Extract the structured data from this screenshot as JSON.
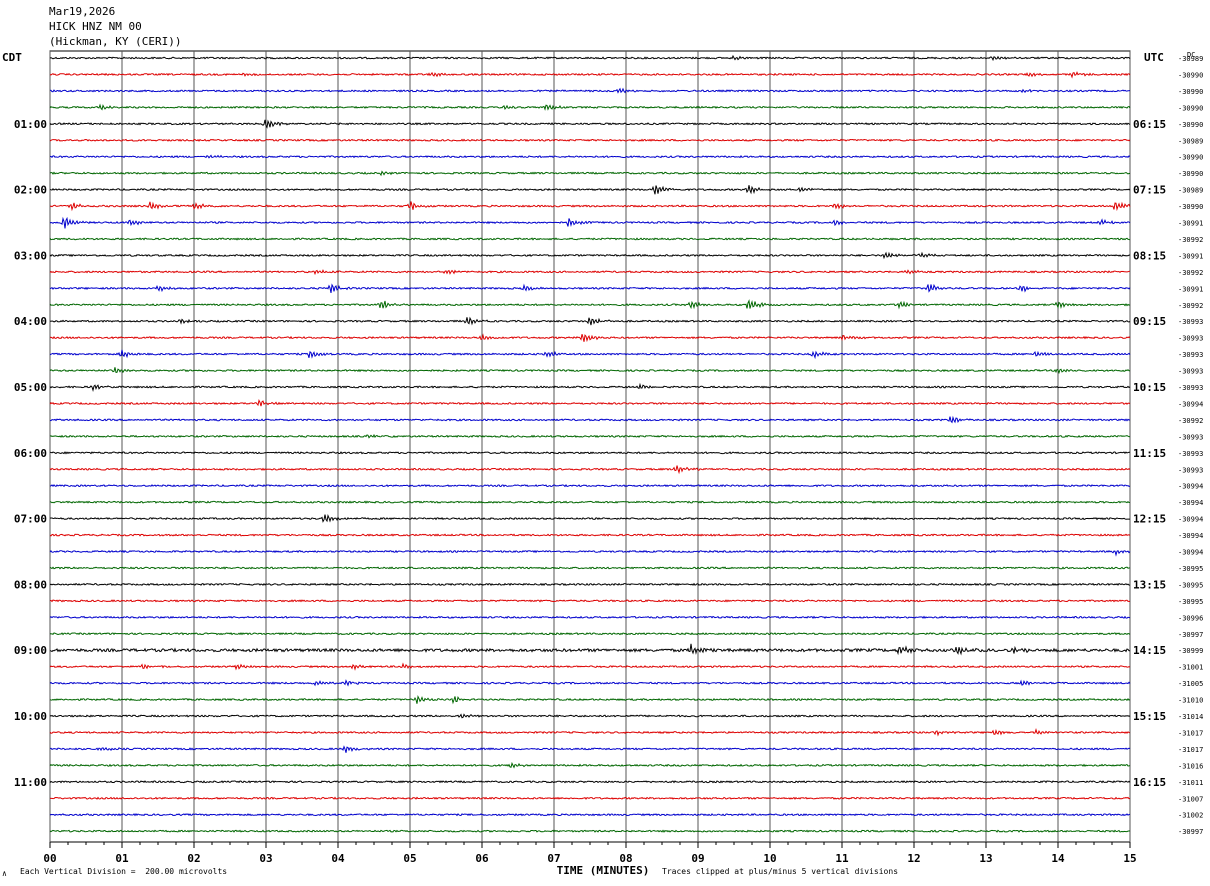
{
  "header": {
    "date": "Mar19,2026",
    "station": "HICK HNZ NM 00",
    "location": "(Hickman, KY (CERI))"
  },
  "chart_data": {
    "type": "line",
    "title": "Mar19,2026 HICK HNZ NM 00 (Hickman, KY (CERI))",
    "xlabel": "TIME (MINUTES)",
    "xlim": [
      0,
      15
    ],
    "x_ticks": [
      "00",
      "01",
      "02",
      "03",
      "04",
      "05",
      "06",
      "07",
      "08",
      "09",
      "10",
      "11",
      "12",
      "13",
      "14",
      "15"
    ],
    "left_axis_label": "CDT",
    "right_axis_label": "UTC",
    "dc_label": "DC",
    "left_time_labels": [
      "01:00",
      "02:00",
      "03:00",
      "04:00",
      "05:00",
      "06:00",
      "07:00",
      "08:00",
      "09:00",
      "10:00",
      "11:00"
    ],
    "right_time_labels": [
      "06:15",
      "07:15",
      "08:15",
      "09:15",
      "10:15",
      "11:15",
      "12:15",
      "13:15",
      "14:15",
      "15:15",
      "16:15"
    ],
    "trace_colors": [
      "#000000",
      "#dd0000",
      "#0000cc",
      "#006600"
    ],
    "dc_offsets": [
      "-30989",
      "-30990",
      "-30990",
      "-30990",
      "-30990",
      "-30989",
      "-30990",
      "-30990",
      "-30989",
      "-30990",
      "-30991",
      "-30992",
      "-30991",
      "-30992",
      "-30991",
      "-30992",
      "-30993",
      "-30993",
      "-30993",
      "-30993",
      "-30993",
      "-30994",
      "-30992",
      "-30993",
      "-30993",
      "-30993",
      "-30994",
      "-30994",
      "-30994",
      "-30994",
      "-30994",
      "-30995",
      "-30995",
      "-30995",
      "-30996",
      "-30997",
      "-30999",
      "-31001",
      "-31005",
      "-31010",
      "-31014",
      "-31017",
      "-31017",
      "-31016",
      "-31011",
      "-31007",
      "-31002",
      "-30997"
    ],
    "events": [
      {
        "trace": 0,
        "minute": 13.1,
        "amp": 3
      },
      {
        "trace": 0,
        "minute": 9.5,
        "amp": 2
      },
      {
        "trace": 1,
        "minute": 2.7,
        "amp": 3
      },
      {
        "trace": 1,
        "minute": 5.3,
        "amp": 3
      },
      {
        "trace": 1,
        "minute": 13.6,
        "amp": 3
      },
      {
        "trace": 1,
        "minute": 14.2,
        "amp": 3
      },
      {
        "trace": 2,
        "minute": 7.9,
        "amp": 3
      },
      {
        "trace": 2,
        "minute": 13.5,
        "amp": 2
      },
      {
        "trace": 3,
        "minute": 0.7,
        "amp": 3
      },
      {
        "trace": 3,
        "minute": 6.9,
        "amp": 4
      },
      {
        "trace": 3,
        "minute": 6.3,
        "amp": 3
      },
      {
        "trace": 4,
        "minute": 3.0,
        "amp": 6
      },
      {
        "trace": 6,
        "minute": 2.2,
        "amp": 2
      },
      {
        "trace": 7,
        "minute": 4.6,
        "amp": 2
      },
      {
        "trace": 8,
        "minute": 8.4,
        "amp": 6
      },
      {
        "trace": 8,
        "minute": 9.7,
        "amp": 5
      },
      {
        "trace": 8,
        "minute": 10.4,
        "amp": 3
      },
      {
        "trace": 9,
        "minute": 0.3,
        "amp": 4
      },
      {
        "trace": 9,
        "minute": 1.4,
        "amp": 5
      },
      {
        "trace": 9,
        "minute": 2.0,
        "amp": 4
      },
      {
        "trace": 9,
        "minute": 5.0,
        "amp": 5
      },
      {
        "trace": 9,
        "minute": 10.9,
        "amp": 4
      },
      {
        "trace": 9,
        "minute": 14.8,
        "amp": 6
      },
      {
        "trace": 10,
        "minute": 0.2,
        "amp": 7
      },
      {
        "trace": 10,
        "minute": 1.1,
        "amp": 4
      },
      {
        "trace": 10,
        "minute": 7.2,
        "amp": 5
      },
      {
        "trace": 10,
        "minute": 10.9,
        "amp": 4
      },
      {
        "trace": 10,
        "minute": 14.6,
        "amp": 4
      },
      {
        "trace": 12,
        "minute": 11.6,
        "amp": 4
      },
      {
        "trace": 12,
        "minute": 12.1,
        "amp": 3
      },
      {
        "trace": 13,
        "minute": 3.7,
        "amp": 2
      },
      {
        "trace": 13,
        "minute": 5.5,
        "amp": 3
      },
      {
        "trace": 13,
        "minute": 11.9,
        "amp": 3
      },
      {
        "trace": 14,
        "minute": 1.5,
        "amp": 4
      },
      {
        "trace": 14,
        "minute": 3.9,
        "amp": 5
      },
      {
        "trace": 14,
        "minute": 6.6,
        "amp": 4
      },
      {
        "trace": 14,
        "minute": 12.2,
        "amp": 6
      },
      {
        "trace": 14,
        "minute": 13.5,
        "amp": 4
      },
      {
        "trace": 15,
        "minute": 4.6,
        "amp": 6
      },
      {
        "trace": 15,
        "minute": 8.9,
        "amp": 5
      },
      {
        "trace": 15,
        "minute": 9.7,
        "amp": 7
      },
      {
        "trace": 15,
        "minute": 11.8,
        "amp": 4
      },
      {
        "trace": 15,
        "minute": 14.0,
        "amp": 4
      },
      {
        "trace": 16,
        "minute": 1.8,
        "amp": 3
      },
      {
        "trace": 16,
        "minute": 5.8,
        "amp": 5
      },
      {
        "trace": 16,
        "minute": 7.5,
        "amp": 5
      },
      {
        "trace": 17,
        "minute": 6.0,
        "amp": 4
      },
      {
        "trace": 17,
        "minute": 7.4,
        "amp": 6
      },
      {
        "trace": 17,
        "minute": 11.0,
        "amp": 4
      },
      {
        "trace": 18,
        "minute": 1.0,
        "amp": 5
      },
      {
        "trace": 18,
        "minute": 3.6,
        "amp": 5
      },
      {
        "trace": 18,
        "minute": 6.9,
        "amp": 4
      },
      {
        "trace": 18,
        "minute": 10.6,
        "amp": 4
      },
      {
        "trace": 18,
        "minute": 13.7,
        "amp": 4
      },
      {
        "trace": 19,
        "minute": 0.9,
        "amp": 4
      },
      {
        "trace": 19,
        "minute": 14.0,
        "amp": 3
      },
      {
        "trace": 20,
        "minute": 0.6,
        "amp": 3
      },
      {
        "trace": 20,
        "minute": 8.2,
        "amp": 3
      },
      {
        "trace": 21,
        "minute": 2.9,
        "amp": 4
      },
      {
        "trace": 22,
        "minute": 12.5,
        "amp": 5
      },
      {
        "trace": 23,
        "minute": 4.4,
        "amp": 2
      },
      {
        "trace": 25,
        "minute": 8.7,
        "amp": 4
      },
      {
        "trace": 28,
        "minute": 3.8,
        "amp": 6
      },
      {
        "trace": 30,
        "minute": 14.8,
        "amp": 3
      },
      {
        "trace": 36,
        "minute": 8.9,
        "amp": 7
      },
      {
        "trace": 36,
        "minute": 11.8,
        "amp": 5
      },
      {
        "trace": 36,
        "minute": 12.6,
        "amp": 5
      },
      {
        "trace": 36,
        "minute": 13.4,
        "amp": 4
      },
      {
        "trace": 37,
        "minute": 1.3,
        "amp": 3
      },
      {
        "trace": 37,
        "minute": 2.6,
        "amp": 3
      },
      {
        "trace": 37,
        "minute": 4.2,
        "amp": 3
      },
      {
        "trace": 37,
        "minute": 4.9,
        "amp": 3
      },
      {
        "trace": 38,
        "minute": 3.7,
        "amp": 3
      },
      {
        "trace": 38,
        "minute": 4.1,
        "amp": 3
      },
      {
        "trace": 38,
        "minute": 13.5,
        "amp": 3
      },
      {
        "trace": 39,
        "minute": 5.1,
        "amp": 4
      },
      {
        "trace": 39,
        "minute": 5.6,
        "amp": 4
      },
      {
        "trace": 40,
        "minute": 5.7,
        "amp": 3
      },
      {
        "trace": 41,
        "minute": 12.3,
        "amp": 3
      },
      {
        "trace": 41,
        "minute": 13.1,
        "amp": 3
      },
      {
        "trace": 41,
        "minute": 13.7,
        "amp": 3
      },
      {
        "trace": 42,
        "minute": 0.7,
        "amp": 3
      },
      {
        "trace": 42,
        "minute": 4.1,
        "amp": 4
      },
      {
        "trace": 43,
        "minute": 6.4,
        "amp": 3
      }
    ]
  },
  "footer": {
    "scale_note": "Each Vertical Division =  200.00 microvolts",
    "clip_note": "Traces clipped at plus/minus 5 vertical divisions",
    "corner_mark": "∧"
  }
}
